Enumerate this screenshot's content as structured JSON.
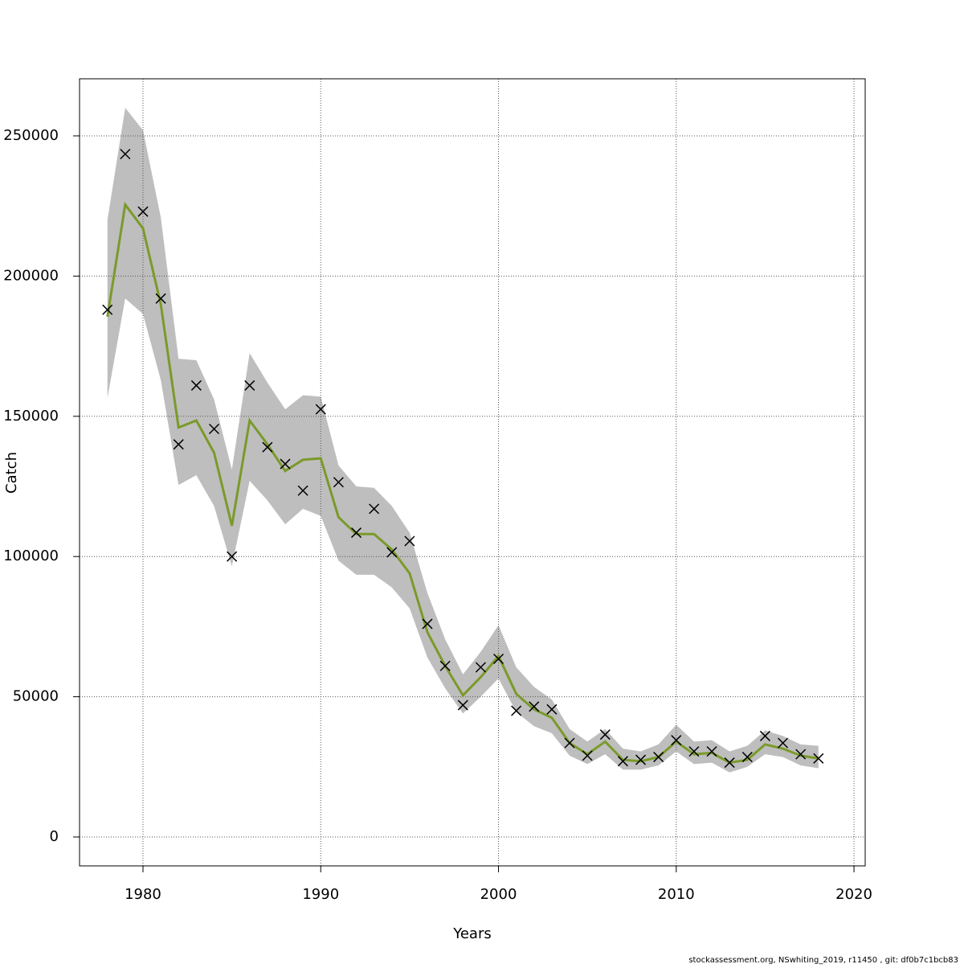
{
  "chart_data": {
    "type": "line",
    "x_label": "Years",
    "y_label": "Catch",
    "footnote": "stockassessment.org, NSwhiting_2019, r11450 , git: df0b7c1bcb83",
    "x": [
      1978,
      1979,
      1980,
      1981,
      1982,
      1983,
      1984,
      1985,
      1986,
      1987,
      1988,
      1989,
      1990,
      1991,
      1992,
      1993,
      1994,
      1995,
      1996,
      1997,
      1998,
      1999,
      2000,
      2001,
      2002,
      2003,
      2004,
      2005,
      2006,
      2007,
      2008,
      2009,
      2010,
      2011,
      2012,
      2013,
      2014,
      2015,
      2016,
      2017,
      2018
    ],
    "series": [
      {
        "color": "#7a9a2a",
        "values": [
          185500,
          225500,
          217000,
          190000,
          146000,
          148500,
          137000,
          111000,
          148500,
          140000,
          130500,
          134500,
          135000,
          114000,
          108000,
          108000,
          102500,
          94000,
          73000,
          61000,
          50500,
          57000,
          64500,
          51000,
          45500,
          42500,
          33500,
          29500,
          34000,
          27500,
          27000,
          28500,
          34000,
          29500,
          30000,
          26500,
          27500,
          33000,
          31500,
          29000,
          28000
        ]
      }
    ],
    "observed": {
      "color": "#000000",
      "values": [
        188000,
        243500,
        223000,
        192000,
        140000,
        161000,
        145500,
        100000,
        161000,
        139000,
        133000,
        123500,
        152500,
        126500,
        108500,
        117000,
        101500,
        105500,
        76000,
        61000,
        47000,
        60500,
        63500,
        45000,
        46500,
        45500,
        33500,
        29000,
        36500,
        27000,
        27500,
        28500,
        34500,
        30500,
        30500,
        26500,
        28500,
        36000,
        33500,
        29500,
        28000
      ]
    },
    "interval": {
      "color": "#bebebe",
      "upper": [
        220000,
        260000,
        252000,
        221000,
        170500,
        170000,
        156000,
        131000,
        172500,
        162000,
        152500,
        157500,
        157000,
        132500,
        125000,
        124500,
        118000,
        108500,
        87000,
        70500,
        58000,
        66000,
        75500,
        60500,
        53500,
        49000,
        38500,
        34000,
        38500,
        31500,
        30500,
        33000,
        40000,
        34000,
        34500,
        30500,
        32500,
        38000,
        36000,
        33000,
        32500
      ],
      "lower": [
        156500,
        192000,
        186500,
        163000,
        125500,
        129000,
        118000,
        96500,
        127000,
        120000,
        111500,
        117000,
        114500,
        98500,
        93500,
        93500,
        89000,
        81500,
        64000,
        53000,
        44000,
        50000,
        56500,
        44500,
        39500,
        37000,
        29000,
        26000,
        29500,
        24000,
        24000,
        25500,
        30500,
        26000,
        26500,
        23000,
        25000,
        29500,
        28500,
        25500,
        24500
      ]
    },
    "xlim": [
      1976.43,
      2020.63
    ],
    "ylim": [
      -10320,
      270350
    ],
    "xticks": [
      1980,
      1990,
      2000,
      2010,
      2020
    ],
    "yticks": [
      0,
      50000,
      100000,
      150000,
      200000,
      250000
    ],
    "grid": true
  }
}
